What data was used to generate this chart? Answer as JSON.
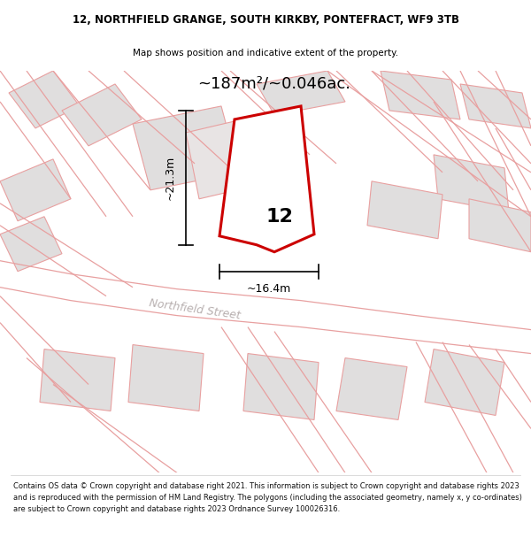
{
  "title_line1": "12, NORTHFIELD GRANGE, SOUTH KIRKBY, PONTEFRACT, WF9 3TB",
  "title_line2": "Map shows position and indicative extent of the property.",
  "area_label": "~187m²/~0.046ac.",
  "width_label": "~16.4m",
  "height_label": "~21.3m",
  "plot_number": "12",
  "street_name": "Northfield Street",
  "footer_text": "Contains OS data © Crown copyright and database right 2021. This information is subject to Crown copyright and database rights 2023 and is reproduced with the permission of HM Land Registry. The polygons (including the associated geometry, namely x, y co-ordinates) are subject to Crown copyright and database rights 2023 Ordnance Survey 100026316.",
  "bg_color": "#f8f4f4",
  "plot_fill": "#ffffff",
  "plot_edge": "#cc0000",
  "building_fill": "#e0dede",
  "building_edge": "#e8a0a0",
  "road_color": "#e8a0a0",
  "text_color": "#000000",
  "street_label_color": "#b8b0b0"
}
